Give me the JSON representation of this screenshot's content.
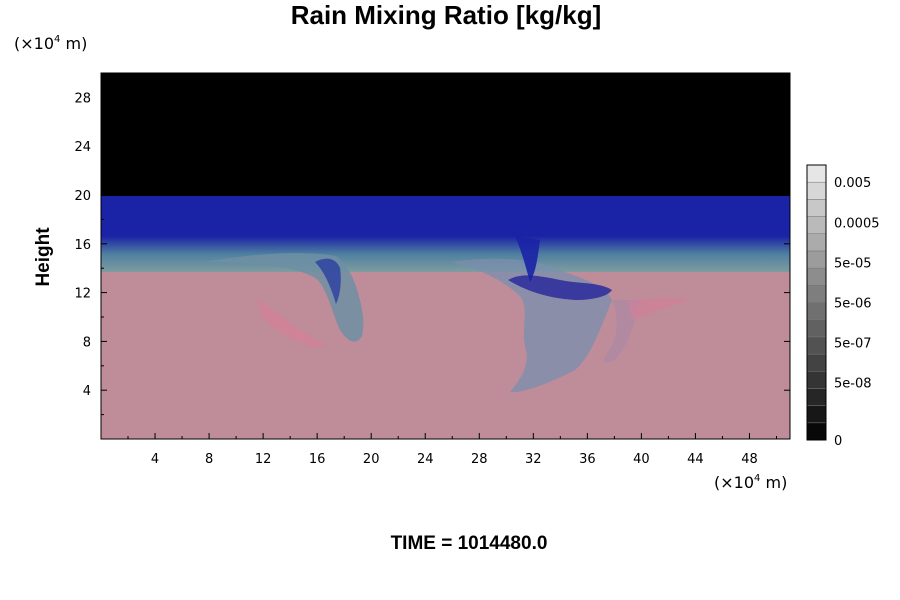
{
  "chart_data": {
    "type": "heatmap",
    "title": "Rain Mixing Ratio [kg/kg]",
    "ylabel": "Height",
    "xlabel": "",
    "x_unit": {
      "prefix": "(×10",
      "exponent": "4",
      "suffix": " m)"
    },
    "y_unit": {
      "prefix": "(×10",
      "exponent": "4",
      "suffix": " m)"
    },
    "x_ticks": [
      4,
      8,
      12,
      16,
      20,
      24,
      28,
      32,
      36,
      40,
      44,
      48
    ],
    "y_ticks": [
      4,
      8,
      12,
      16,
      20,
      24,
      28
    ],
    "xlim": [
      0,
      51
    ],
    "ylim": [
      0,
      30
    ],
    "colorbar": {
      "labels": [
        "0.005",
        "0.0005",
        "5e-05",
        "5e-06",
        "5e-07",
        "5e-08",
        "0"
      ],
      "levels": 16,
      "colors": [
        "#000000",
        "#ffffff"
      ]
    },
    "field": {
      "layers": [
        {
          "from": 0,
          "to": 13.6,
          "color": "#bf8c9a",
          "description": "lower layer"
        },
        {
          "from": 13.6,
          "to": 16.4,
          "color": "#7fa0a4",
          "description": "transition"
        },
        {
          "from": 16.4,
          "to": 19.8,
          "color": "#1a22a6",
          "description": "upper layer"
        },
        {
          "from": 19.8,
          "to": 30,
          "color": "#000000",
          "description": "top"
        }
      ]
    },
    "time_label": "TIME = 1014480.0"
  },
  "colors": {
    "lower": "#bf8c9a",
    "transition": "#7fa0a4",
    "upper": "#1a22a6",
    "top": "#000000",
    "frame": "#000000"
  }
}
